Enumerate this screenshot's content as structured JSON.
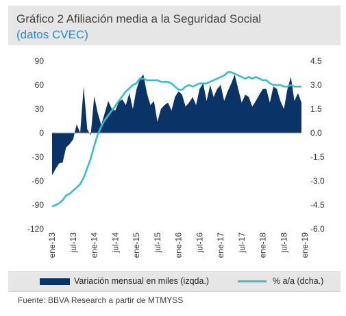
{
  "chart_data": {
    "type": "bar+line",
    "title": "Gráfico 2 Afiliación media a la Seguridad Social",
    "subtitle": "(datos CVEC)",
    "source": "Fuente: BBVA Research a partir de MTMYSS",
    "x_labels": [
      "ene-13",
      "jul-13",
      "ene-14",
      "jul-14",
      "ene-15",
      "jul-15",
      "ene-16",
      "jul-16",
      "ene-17",
      "jul-17",
      "ene-18",
      "jul-18",
      "ene-19"
    ],
    "left_axis": {
      "min": -120,
      "max": 90,
      "ticks": [
        90,
        60,
        30,
        0,
        -30,
        -60,
        -90,
        -120
      ]
    },
    "right_axis": {
      "min": -6.0,
      "max": 4.5,
      "ticks": [
        "4.5",
        "3.0",
        "1.5",
        "0.0",
        "-1.5",
        "-3.0",
        "-4.5",
        "-6.0"
      ]
    },
    "series": [
      {
        "name": "Variación mensual en miles (izqda.)",
        "type": "area",
        "axis": "left",
        "color": "#0a3468",
        "values": [
          -53,
          -45,
          -38,
          -37,
          -18,
          -14,
          -8,
          11,
          0,
          58,
          5,
          -3,
          46,
          25,
          10,
          25,
          40,
          30,
          28,
          39,
          42,
          35,
          50,
          30,
          54,
          68,
          73,
          50,
          35,
          40,
          14,
          30,
          35,
          38,
          28,
          45,
          52,
          48,
          33,
          38,
          45,
          35,
          55,
          62,
          40,
          60,
          45,
          55,
          60,
          40,
          52,
          62,
          73,
          55,
          38,
          48,
          45,
          33,
          40,
          48,
          55,
          55,
          38,
          58,
          55,
          40,
          30,
          55,
          70,
          40,
          50,
          38
        ]
      },
      {
        "name": "% a/a (dcha.)",
        "type": "line",
        "axis": "right",
        "color": "#36c0c6",
        "values": [
          -4.6,
          -4.5,
          -4.4,
          -4.2,
          -3.9,
          -3.8,
          -3.6,
          -3.4,
          -3.2,
          -2.8,
          -2.2,
          -1.6,
          -0.8,
          -0.1,
          0.4,
          0.8,
          1.1,
          1.4,
          1.7,
          2.0,
          2.3,
          2.6,
          2.8,
          3.0,
          3.1,
          3.4,
          3.4,
          3.3,
          3.3,
          3.3,
          3.3,
          3.2,
          3.2,
          3.2,
          3.1,
          2.9,
          2.7,
          2.7,
          2.9,
          3.0,
          2.9,
          3.0,
          3.1,
          3.1,
          3.1,
          3.2,
          3.3,
          3.4,
          3.5,
          3.6,
          3.8,
          3.8,
          3.7,
          3.6,
          3.5,
          3.4,
          3.5,
          3.4,
          3.5,
          3.4,
          3.3,
          3.3,
          3.1,
          3.0,
          3.0,
          3.0,
          2.9,
          2.9,
          3.0,
          2.9,
          2.9,
          2.9
        ]
      }
    ]
  },
  "legend": {
    "bar_label": "Variación mensual en miles (izqda.)",
    "line_label": "% a/a (dcha.)"
  }
}
